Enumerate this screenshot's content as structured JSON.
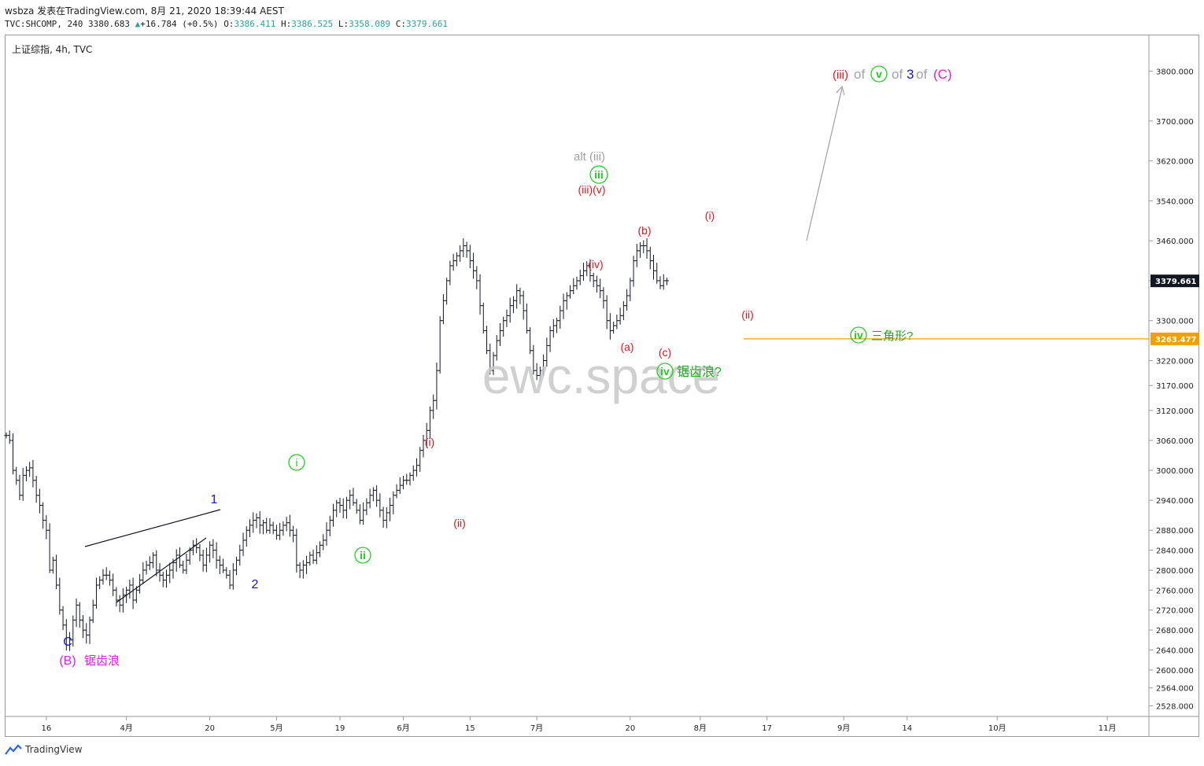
{
  "header": {
    "user": "wsbza",
    "published_text": "发表在TradingView.com,",
    "datetime": "8月 21, 2020 18:39:44 AEST",
    "symbol": "TVC:SHCOMP",
    "interval": "240",
    "last": "3380.683",
    "change": "+16.784 (+0.5%)",
    "o_label": "O:",
    "o_value": "3386.411",
    "h_label": "H:",
    "h_value": "3386.525",
    "l_label": "L:",
    "l_value": "3358.089",
    "c_label": "C:",
    "c_value": "3379.661"
  },
  "legend": {
    "title": "上证综指, 4h, TVC"
  },
  "footer": {
    "brand": "TradingView"
  },
  "watermark": "ewc.space",
  "colors": {
    "bar": "#131722",
    "accent_price": "#131722",
    "support": "#f0a000",
    "red": "#e8151b",
    "green": "#22cc22",
    "blue": "#1414e6",
    "magenta": "#e020e0",
    "grey": "#a0a0a8"
  },
  "chart_data": {
    "type": "ohlc-bar",
    "timeframe": "4h",
    "y_axis": {
      "ticks": [
        2528,
        2564,
        2600,
        2640,
        2680,
        2720,
        2760,
        2800,
        2840,
        2880,
        2940,
        3000,
        3060,
        3120,
        3170,
        3220,
        3300,
        3380,
        3460,
        3540,
        3620,
        3700,
        3800
      ],
      "ylim": [
        2510,
        3870
      ],
      "tick_labels": [
        "2528.000",
        "2564.000",
        "2600.000",
        "2640.000",
        "2680.000",
        "2720.000",
        "2760.000",
        "2800.000",
        "2840.000",
        "2880.000",
        "2940.000",
        "3000.000",
        "3060.000",
        "3120.000",
        "3170.000",
        "3220.000",
        "3300.000",
        "3380.000",
        "3460.000",
        "3540.000",
        "3620.000",
        "3700.000",
        "3800.000"
      ]
    },
    "x_axis": {
      "ticks": [
        {
          "label": "16",
          "i": 12
        },
        {
          "label": "4月",
          "i": 36
        },
        {
          "label": "20",
          "i": 61
        },
        {
          "label": "5月",
          "i": 81
        },
        {
          "label": "19",
          "i": 100
        },
        {
          "label": "6月",
          "i": 119
        },
        {
          "label": "15",
          "i": 139
        },
        {
          "label": "7月",
          "i": 159
        },
        {
          "label": "20",
          "i": 187
        },
        {
          "label": "8月",
          "i": 208
        },
        {
          "label": "17",
          "i": 228
        },
        {
          "label": "9月",
          "i": 251
        },
        {
          "label": "14",
          "i": 270
        },
        {
          "label": "10月",
          "i": 297
        },
        {
          "label": "11月",
          "i": 330
        }
      ],
      "index_range": [
        0,
        342
      ]
    },
    "price_labels": [
      {
        "value": 3379.661,
        "text": "3379.661",
        "role": "last"
      },
      {
        "value": 3263.477,
        "text": "3263.477",
        "role": "support"
      }
    ],
    "support_line": {
      "value": 3263.477,
      "from_i": 221
    },
    "closes": [
      3070,
      3060,
      3000,
      2980,
      2950,
      2990,
      3000,
      3005,
      2980,
      2950,
      2930,
      2900,
      2880,
      2800,
      2820,
      2770,
      2720,
      2690,
      2650,
      2660,
      2700,
      2730,
      2700,
      2680,
      2670,
      2700,
      2730,
      2770,
      2780,
      2790,
      2790,
      2780,
      2760,
      2740,
      2730,
      2750,
      2760,
      2770,
      2740,
      2760,
      2780,
      2800,
      2810,
      2815,
      2830,
      2800,
      2790,
      2780,
      2790,
      2800,
      2815,
      2830,
      2810,
      2800,
      2820,
      2840,
      2850,
      2845,
      2830,
      2810,
      2830,
      2850,
      2840,
      2820,
      2810,
      2800,
      2790,
      2770,
      2800,
      2820,
      2840,
      2860,
      2880,
      2890,
      2900,
      2905,
      2890,
      2895,
      2880,
      2890,
      2880,
      2870,
      2880,
      2890,
      2895,
      2880,
      2870,
      2810,
      2800,
      2810,
      2815,
      2830,
      2820,
      2835,
      2850,
      2860,
      2880,
      2900,
      2920,
      2935,
      2930,
      2920,
      2940,
      2950,
      2935,
      2920,
      2900,
      2920,
      2935,
      2950,
      2960,
      2940,
      2920,
      2900,
      2915,
      2930,
      2950,
      2960,
      2970,
      2980,
      2980,
      2990,
      3000,
      3010,
      3040,
      3060,
      3080,
      3120,
      3140,
      3200,
      3300,
      3340,
      3380,
      3410,
      3420,
      3430,
      3440,
      3450,
      3440,
      3420,
      3400,
      3380,
      3330,
      3280,
      3240,
      3200,
      3230,
      3260,
      3280,
      3300,
      3310,
      3330,
      3340,
      3360,
      3350,
      3320,
      3280,
      3240,
      3200,
      3190,
      3200,
      3220,
      3250,
      3280,
      3290,
      3300,
      3320,
      3340,
      3350,
      3360,
      3370,
      3380,
      3390,
      3400,
      3410,
      3390,
      3380,
      3370,
      3360,
      3340,
      3300,
      3280,
      3290,
      3300,
      3310,
      3330,
      3350,
      3380,
      3420,
      3440,
      3450,
      3450,
      3440,
      3420,
      3400,
      3380,
      3370,
      3380,
      3380
    ]
  },
  "annotations": {
    "a1": "(B)",
    "a1b": "锯齿浪",
    "c_low": "C",
    "w1": "1",
    "w2": "2",
    "wi": "i",
    "wii": "ii",
    "r_i1": "(i)",
    "r_ii1": "(ii)",
    "alt": "alt (iii)",
    "wiii": "iii",
    "r_iiiv": "(iii)(v)",
    "r_iv": "(iv)",
    "ra": "(a)",
    "rb": "(b)",
    "rc": "(c)",
    "wiv": "iv",
    "zigzag": "锯齿浪?",
    "r_i2": "(i)",
    "r_ii2": "(ii)",
    "wiv2": "iv",
    "triangle": "三角形?",
    "proj_iii": "(iii)",
    "of1": "of",
    "proj_v": "v",
    "of2": "of",
    "proj_3": "3",
    "of3": "of",
    "proj_C": "(C)"
  }
}
